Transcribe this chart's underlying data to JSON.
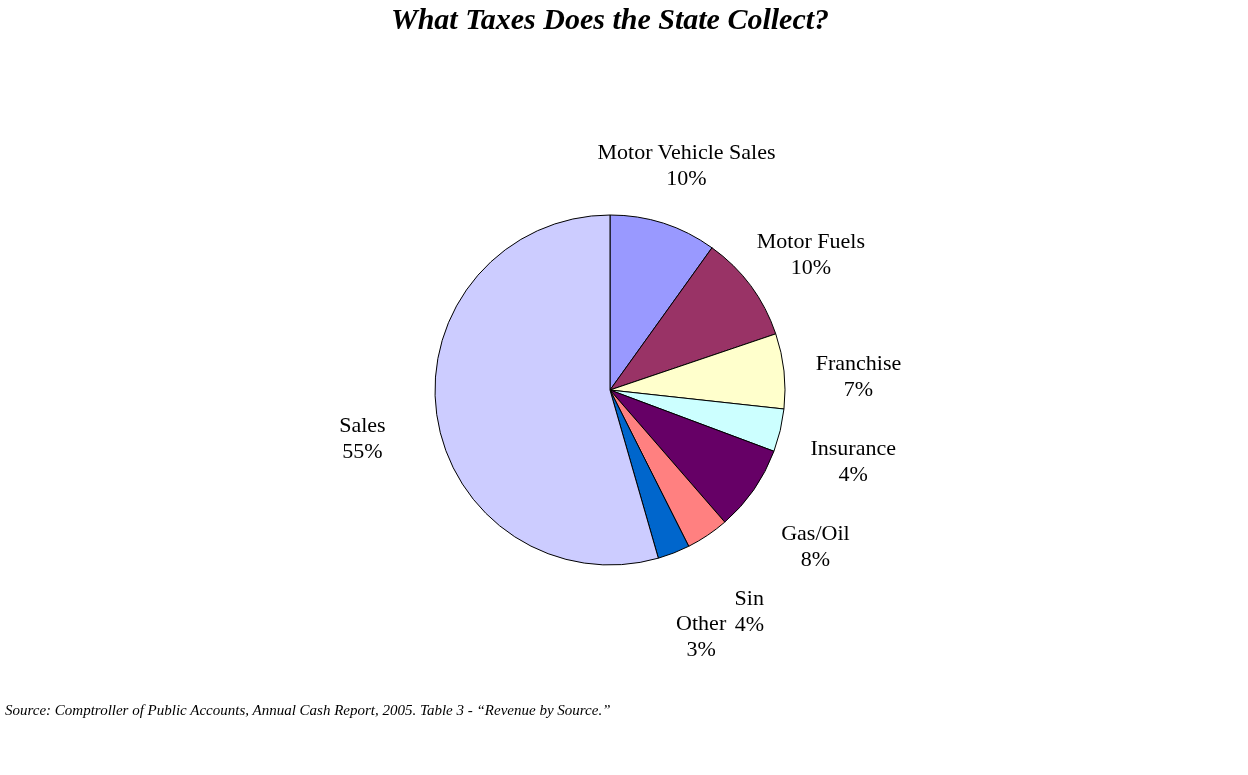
{
  "chart_data": {
    "type": "pie",
    "title": "What Taxes Does the State Collect?",
    "categories": [
      "Motor Vehicle Sales",
      "Motor Fuels",
      "Franchise",
      "Insurance",
      "Gas/Oil",
      "Sin",
      "Other",
      "Sales"
    ],
    "values": [
      10,
      10,
      7,
      4,
      8,
      4,
      3,
      55
    ],
    "value_labels": [
      "10%",
      "10%",
      "7%",
      "4%",
      "8%",
      "4%",
      "3%",
      "55%"
    ],
    "colors": [
      "#9999ff",
      "#993366",
      "#ffffcc",
      "#ccffff",
      "#660066",
      "#ff8080",
      "#0066cc",
      "#ccccff"
    ],
    "legend": false,
    "annotations": [
      "Source: Comptroller of Public Accounts, Annual Cash Report, 2005. Table 3 - “Revenue by Source.”"
    ]
  }
}
